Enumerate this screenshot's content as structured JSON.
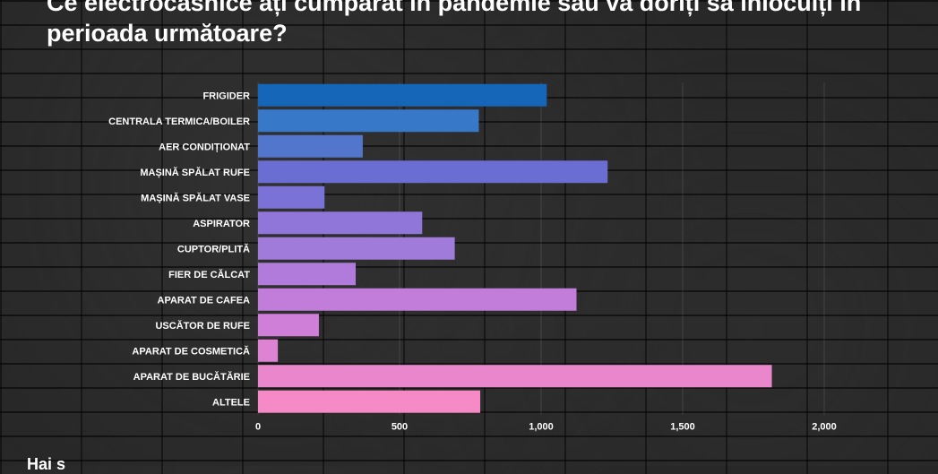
{
  "title": "Ce electrocasnice ați cumpărat în pandemie sau va doriți să înlocuiți în perioada următoare?",
  "footer": "Hai s",
  "chart_data": {
    "type": "bar",
    "orientation": "horizontal",
    "categories": [
      "FRIGIDER",
      "CENTRALA TERMICA/BOILER",
      "AER CONDIȚIONAT",
      "MAȘINĂ SPĂLAT RUFE",
      "MAȘINĂ SPĂLAT VASE",
      "ASPIRATOR",
      "CUPTOR/PLITĂ",
      "FIER DE CĂLCAT",
      "APARAT DE CAFEA",
      "USCĂTOR DE RUFE",
      "APARAT DE COSMETICĂ",
      "APARAT DE BUCĂTĂRIE",
      "ALTELE"
    ],
    "values": [
      1020,
      780,
      370,
      1235,
      235,
      580,
      695,
      345,
      1125,
      215,
      70,
      1815,
      785
    ],
    "colors": [
      "#1565b8",
      "#3778c8",
      "#5276cc",
      "#6a6ed3",
      "#7a72d6",
      "#8f76d8",
      "#a07bd9",
      "#b07bda",
      "#c27cda",
      "#d07fd8",
      "#de82d3",
      "#ea86cc",
      "#f58ac6"
    ],
    "ticks": [
      0,
      500,
      1000,
      1500,
      2000
    ],
    "tick_labels": [
      "0",
      "500",
      "1,000",
      "1,500",
      "2,000"
    ],
    "xlim": [
      0,
      2000
    ],
    "grid": true
  }
}
